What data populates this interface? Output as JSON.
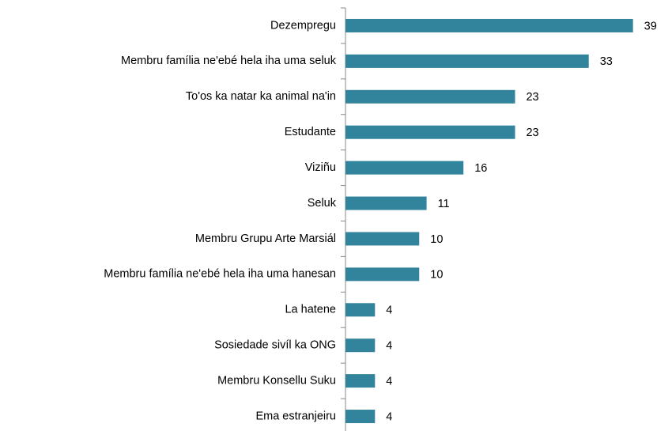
{
  "chart_data": {
    "type": "hbar",
    "categories": [
      "Dezempregu",
      "Membru família ne'ebé hela iha uma seluk",
      "To'os ka natar ka animal na'in",
      "Estudante",
      "Viziñu",
      "Seluk",
      "Membru Grupu Arte Marsiál",
      "Membru família ne'ebé hela iha uma hanesan",
      "La hatene",
      "Sosiedade sivíl ka ONG",
      "Membru Konsellu Suku",
      "Ema estranjeiru"
    ],
    "values": [
      39,
      33,
      23,
      23,
      16,
      11,
      10,
      10,
      4,
      4,
      4,
      4
    ],
    "color": "#31849b",
    "xlim": [
      0,
      40
    ]
  }
}
